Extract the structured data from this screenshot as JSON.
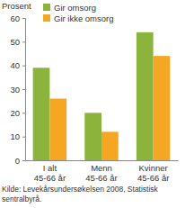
{
  "chart_data": {
    "type": "bar",
    "ylabel": "Prosent",
    "categories": [
      "I alt\n45-66 år",
      "Menn\n45-66 år",
      "Kvinner\n45-66 år"
    ],
    "series": [
      {
        "name": "Gir omsorg",
        "color": "#8cb43c",
        "values": [
          39,
          20,
          54
        ]
      },
      {
        "name": "Gir ikke omsorg",
        "color": "#f5a623",
        "values": [
          26,
          12,
          44
        ]
      }
    ],
    "ylim": [
      0,
      60
    ],
    "yticks": [
      0,
      10,
      20,
      30,
      40,
      50,
      60
    ],
    "grid": false,
    "legend": "upper left",
    "source": "Kilde: Levekårsundersøkelsen 2008, Statistisk\nsentralbyrå."
  }
}
